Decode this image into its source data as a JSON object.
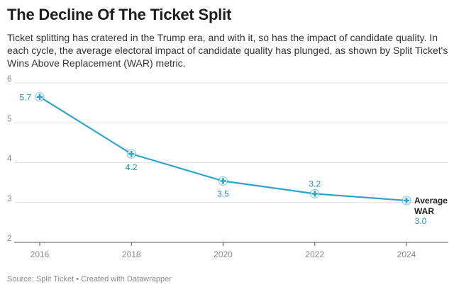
{
  "header": {
    "title": "The Decline Of The Ticket Split",
    "subtitle": "Ticket splitting has cratered in the Trump era, and with it, so has the impact of candidate quality. In each cycle, the average electoral impact of candidate quality has plunged, as shown by Split Ticket's Wins Above Replacement (WAR) metric."
  },
  "footer": {
    "source": "Source: Split Ticket • Created with Datawrapper"
  },
  "colors": {
    "line": "#29a6cc",
    "label": "#1f8fb6",
    "grid": "#e2e2e2",
    "axis": "#8a8a8a"
  },
  "chart_data": {
    "type": "line",
    "title": "The Decline Of The Ticket Split",
    "xlabel": "",
    "ylabel": "",
    "x": [
      2016,
      2018,
      2020,
      2022,
      2024
    ],
    "ylim": [
      2,
      6
    ],
    "yticks": [
      "2",
      "3",
      "4",
      "5",
      "6"
    ],
    "xticks": [
      "2016",
      "2018",
      "2020",
      "2022",
      "2024"
    ],
    "grid": true,
    "series": [
      {
        "name": "Average WAR",
        "values": [
          5.65,
          4.22,
          3.54,
          3.22,
          3.05
        ],
        "data_labels": [
          "5.7",
          "4.2",
          "3.5",
          "3.2",
          "3.0"
        ]
      }
    ],
    "end_label": [
      "Average",
      "WAR"
    ]
  }
}
